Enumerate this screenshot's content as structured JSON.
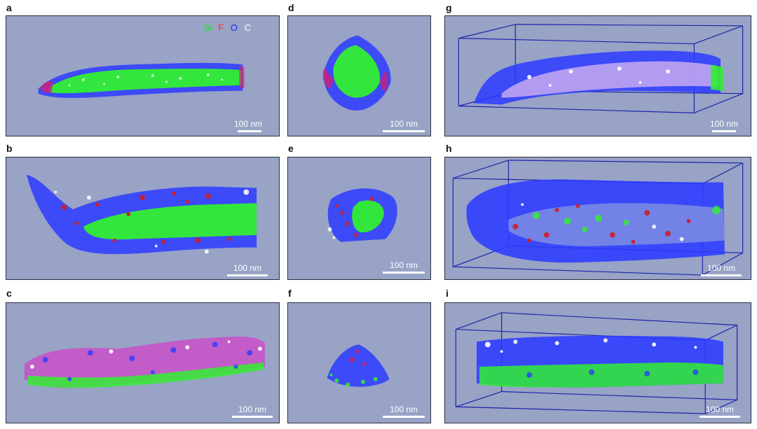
{
  "figure": {
    "panels": [
      {
        "label": "a",
        "scale": "100 nm"
      },
      {
        "label": "b",
        "scale": "100 nm"
      },
      {
        "label": "c",
        "scale": "100 nm"
      },
      {
        "label": "d",
        "scale": "100 nm"
      },
      {
        "label": "e",
        "scale": "100 nm"
      },
      {
        "label": "f",
        "scale": "100 nm"
      },
      {
        "label": "g",
        "scale": "100 nm"
      },
      {
        "label": "h",
        "scale": "100 nm"
      },
      {
        "label": "i",
        "scale": "100 nm"
      }
    ],
    "legend": [
      {
        "text": "Si",
        "color": "#22dd22"
      },
      {
        "text": "F",
        "color": "#ff2a2a"
      },
      {
        "text": "O",
        "color": "#1e2bff"
      },
      {
        "text": "C",
        "color": "#ffffff"
      }
    ]
  }
}
